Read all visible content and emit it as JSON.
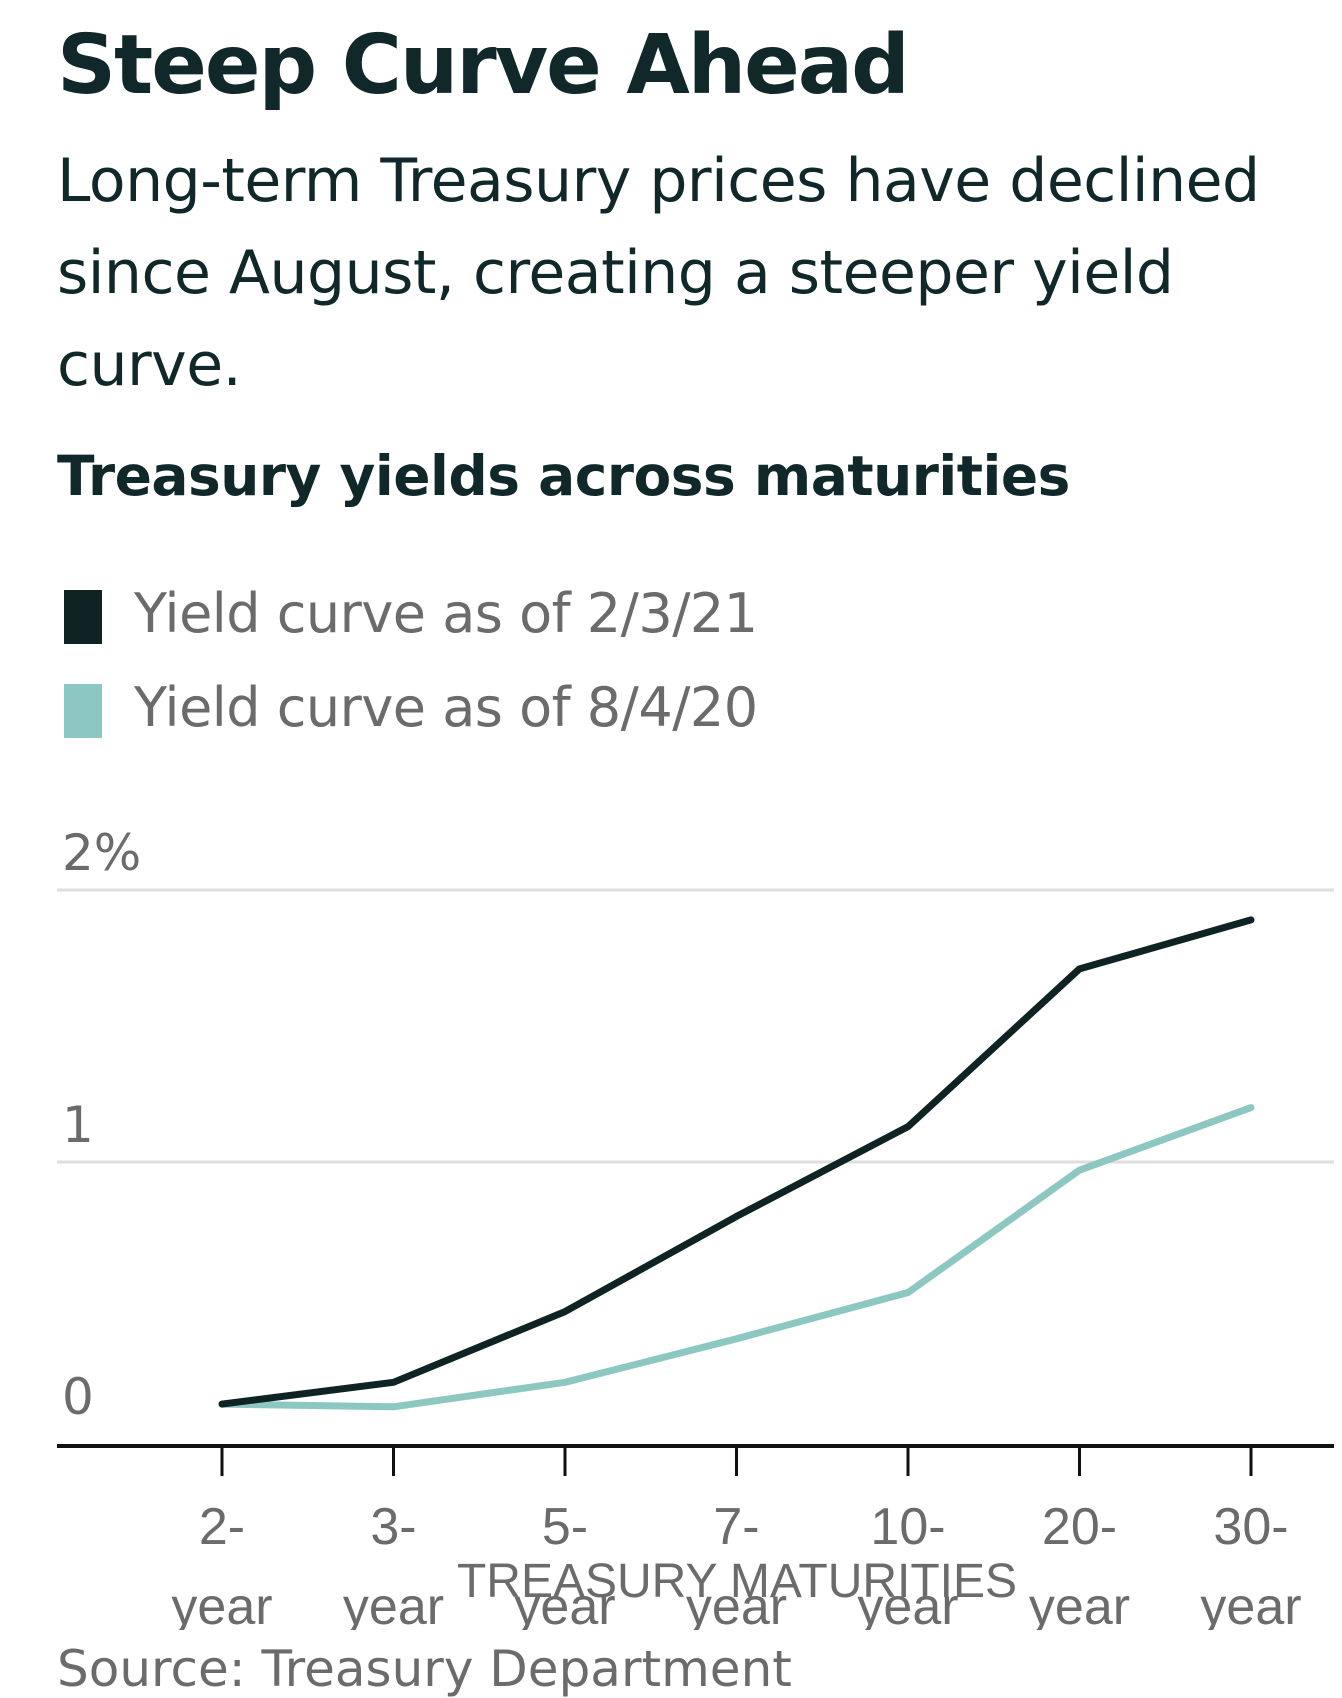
{
  "header": {
    "title": "Steep Curve Ahead",
    "subtitle": "Long-term Treasury prices have declined since August, creating a steeper yield curve."
  },
  "chart_data": {
    "type": "line",
    "title": "Treasury yields across maturities",
    "xlabel": "TREASURY MATURITIES",
    "ylabel": "",
    "categories": [
      "2-year",
      "3-year",
      "5-year",
      "7-year",
      "10-year",
      "20-year",
      "30-year"
    ],
    "x_tick_labels": [
      [
        "2-",
        "year"
      ],
      [
        "3-",
        "year"
      ],
      [
        "5-",
        "year"
      ],
      [
        "7-",
        "year"
      ],
      [
        "10-",
        "year"
      ],
      [
        "20-",
        "year"
      ],
      [
        "30-",
        "year"
      ]
    ],
    "y_ticks": [
      0,
      1,
      2
    ],
    "y_tick_labels": [
      "0",
      "1",
      "2%"
    ],
    "ylim": [
      0,
      2
    ],
    "grid": true,
    "legend_position": "top-left",
    "series": [
      {
        "name": "Yield curve as of 2/3/21",
        "color": "#0f2325",
        "values": [
          0.11,
          0.19,
          0.45,
          0.8,
          1.13,
          1.71,
          1.89
        ]
      },
      {
        "name": "Yield curve as of 8/4/20",
        "color": "#8cc8c1",
        "values": [
          0.11,
          0.1,
          0.19,
          0.35,
          0.52,
          0.97,
          1.2
        ]
      }
    ],
    "source": "Source: Treasury Department"
  }
}
